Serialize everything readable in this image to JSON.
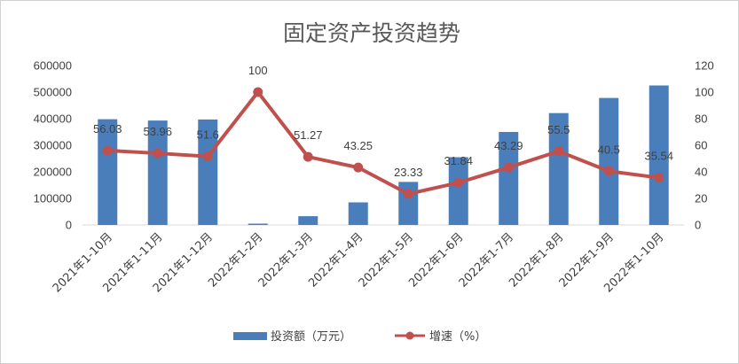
{
  "chart_data": {
    "type": "bar",
    "title": "固定资产投资趋势",
    "categories": [
      "2021年1-10月",
      "2021年1-11月",
      "2021年1-12月",
      "2022年1-2月",
      "2022年1-3月",
      "2022年1-4月",
      "2022年1-5月",
      "2022年1-6月",
      "2022年1-7月",
      "2022年1-8月",
      "2022年1-9月",
      "2022年1-10月"
    ],
    "series": [
      {
        "name": "投资额（万元）",
        "type": "bar",
        "axis": "left",
        "color": "#4a7ebb",
        "values": [
          398000,
          393000,
          397000,
          5000,
          33000,
          85000,
          162000,
          255000,
          350000,
          421000,
          478000,
          525000
        ]
      },
      {
        "name": "增速（%）",
        "type": "line",
        "axis": "right",
        "color": "#c0504d",
        "values": [
          56.03,
          53.96,
          51.6,
          100,
          51.27,
          43.25,
          23.33,
          31.84,
          43.29,
          55.5,
          40.5,
          35.54
        ],
        "labels": [
          "56.03",
          "53.96",
          "51.6",
          "100",
          "51.27",
          "43.25",
          "23.33",
          "31.84",
          "43.29",
          "55.5",
          "40.5",
          "35.54"
        ]
      }
    ],
    "y_left": {
      "min": 0,
      "max": 600000,
      "step": 100000,
      "ticks": [
        "0",
        "100000",
        "200000",
        "300000",
        "400000",
        "500000",
        "600000"
      ]
    },
    "y_right": {
      "min": 0,
      "max": 120,
      "step": 20,
      "ticks": [
        "0",
        "20",
        "40",
        "60",
        "80",
        "100",
        "120"
      ]
    },
    "grid": false,
    "legend_position": "bottom"
  }
}
